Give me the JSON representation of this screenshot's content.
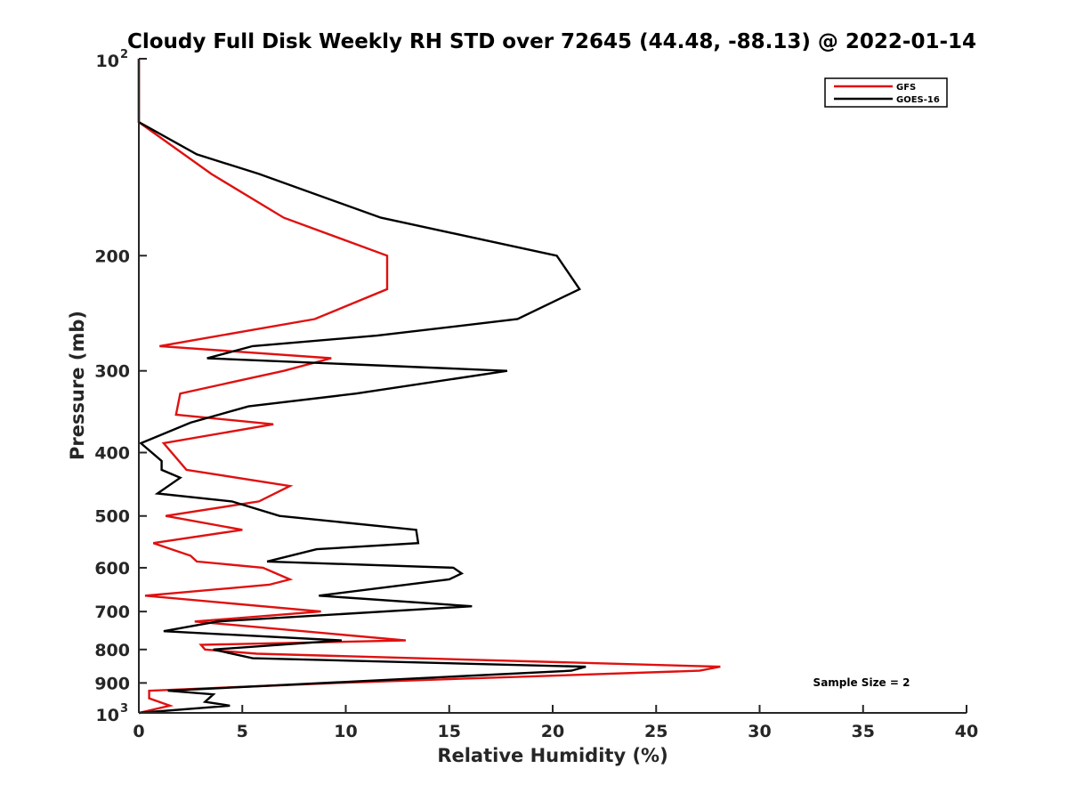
{
  "chart_data": {
    "type": "line",
    "title": "Cloudy Full Disk Weekly RH STD over 72645 (44.48, -88.13) @ 2022-01-14",
    "xlabel": "Relative Humidity (%)",
    "ylabel": "Pressure (mb)",
    "xlim": [
      0,
      40
    ],
    "ylim": [
      100,
      1000
    ],
    "y_scale": "log",
    "y_reversed": true,
    "grid": false,
    "legend_position": "top-right",
    "x_ticks": [
      0,
      5,
      10,
      15,
      20,
      25,
      30,
      35,
      40
    ],
    "y_ticks": [
      {
        "value": 100,
        "base": "10",
        "exp": "2"
      },
      {
        "value": 200,
        "label": "200"
      },
      {
        "value": 300,
        "label": "300"
      },
      {
        "value": 400,
        "label": "400"
      },
      {
        "value": 500,
        "label": "500"
      },
      {
        "value": 600,
        "label": "600"
      },
      {
        "value": 700,
        "label": "700"
      },
      {
        "value": 800,
        "label": "800"
      },
      {
        "value": 900,
        "label": "900"
      },
      {
        "value": 1000,
        "base": "10",
        "exp": "3"
      }
    ],
    "annotation": "Sample Size = 2",
    "series": [
      {
        "name": "GFS",
        "color": "#e01010",
        "points": [
          [
            0,
            100
          ],
          [
            0,
            125
          ],
          [
            3.5,
            150
          ],
          [
            7,
            175
          ],
          [
            12,
            200
          ],
          [
            12,
            225
          ],
          [
            8.5,
            250
          ],
          [
            1,
            275
          ],
          [
            9.3,
            287
          ],
          [
            7,
            300
          ],
          [
            2,
            325
          ],
          [
            1.8,
            350
          ],
          [
            6.5,
            362
          ],
          [
            1.2,
            387
          ],
          [
            2.3,
            425
          ],
          [
            7.3,
            450
          ],
          [
            5.8,
            475
          ],
          [
            1.3,
            500
          ],
          [
            5,
            525
          ],
          [
            0.7,
            550
          ],
          [
            2.5,
            575
          ],
          [
            2.8,
            587
          ],
          [
            6,
            600
          ],
          [
            7.3,
            625
          ],
          [
            6.3,
            637
          ],
          [
            0.3,
            662
          ],
          [
            8.8,
            700
          ],
          [
            2.7,
            725
          ],
          [
            12.9,
            775
          ],
          [
            3,
            787
          ],
          [
            3.2,
            800
          ],
          [
            5.7,
            812
          ],
          [
            28.1,
            850
          ],
          [
            27.1,
            862
          ],
          [
            9.5,
            900
          ],
          [
            0.5,
            925
          ],
          [
            0.5,
            950
          ],
          [
            1.5,
            975
          ],
          [
            0,
            1000
          ]
        ]
      },
      {
        "name": "GOES-16",
        "color": "#000000",
        "points": [
          [
            0,
            100
          ],
          [
            0,
            125
          ],
          [
            2.8,
            140
          ],
          [
            5.8,
            150
          ],
          [
            11.7,
            175
          ],
          [
            20.2,
            200
          ],
          [
            21.3,
            225
          ],
          [
            18.3,
            250
          ],
          [
            11.5,
            265
          ],
          [
            5.5,
            275
          ],
          [
            3.3,
            287
          ],
          [
            17.8,
            300
          ],
          [
            10.5,
            325
          ],
          [
            5.3,
            340
          ],
          [
            2.5,
            360
          ],
          [
            0.1,
            387
          ],
          [
            1.1,
            412
          ],
          [
            1.1,
            425
          ],
          [
            2,
            437
          ],
          [
            0.9,
            462
          ],
          [
            4.5,
            475
          ],
          [
            6.8,
            500
          ],
          [
            13.4,
            525
          ],
          [
            13.5,
            550
          ],
          [
            8.6,
            562
          ],
          [
            6.2,
            587
          ],
          [
            15.2,
            600
          ],
          [
            15.6,
            612
          ],
          [
            15,
            625
          ],
          [
            8.7,
            662
          ],
          [
            16.1,
            687
          ],
          [
            3.8,
            725
          ],
          [
            1.2,
            750
          ],
          [
            9.8,
            775
          ],
          [
            3.6,
            800
          ],
          [
            5.5,
            825
          ],
          [
            21.6,
            850
          ],
          [
            20.9,
            862
          ],
          [
            1.4,
            925
          ],
          [
            3.6,
            937
          ],
          [
            3.2,
            962
          ],
          [
            4.4,
            975
          ],
          [
            0,
            1000
          ]
        ]
      }
    ]
  }
}
